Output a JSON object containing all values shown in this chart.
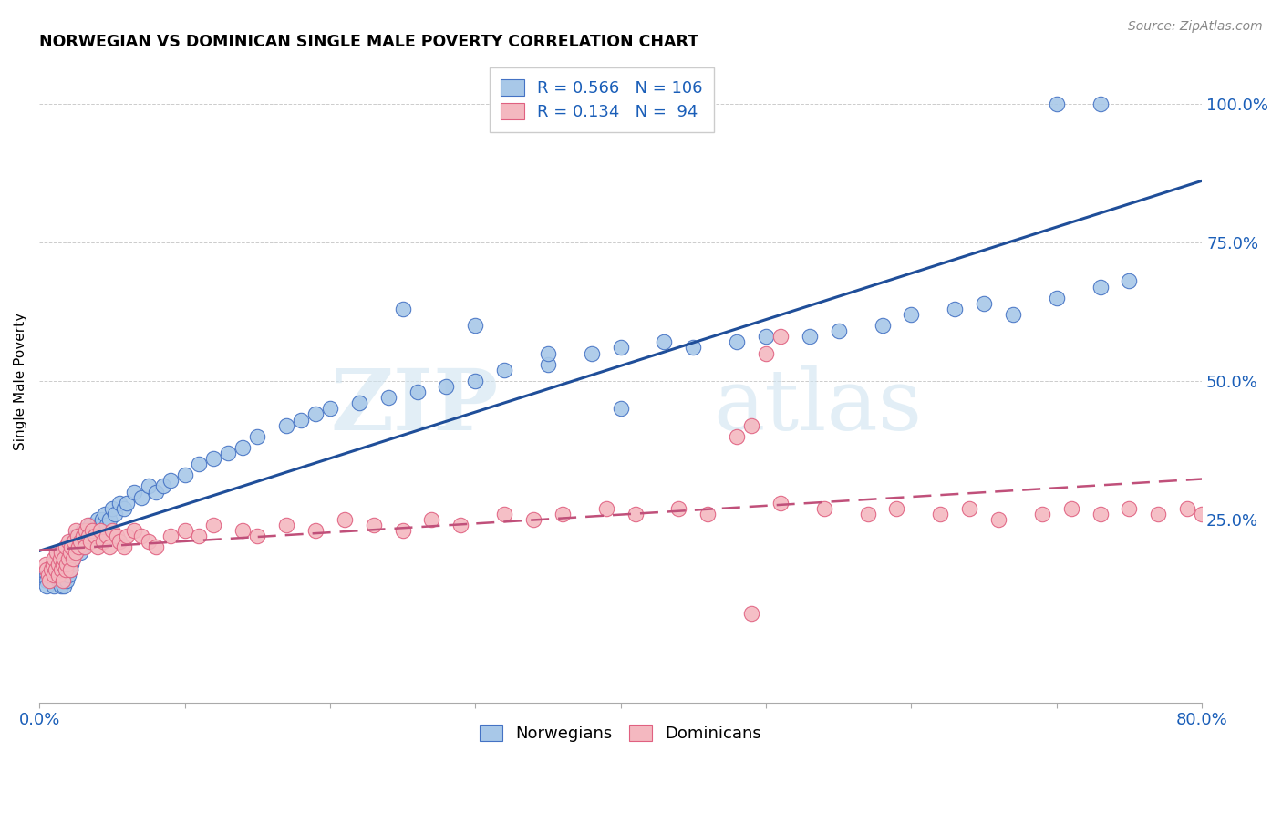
{
  "title": "NORWEGIAN VS DOMINICAN SINGLE MALE POVERTY CORRELATION CHART",
  "source": "Source: ZipAtlas.com",
  "ylabel": "Single Male Poverty",
  "ytick_labels": [
    "100.0%",
    "75.0%",
    "50.0%",
    "25.0%"
  ],
  "ytick_values": [
    1.0,
    0.75,
    0.5,
    0.25
  ],
  "legend_blue_r": "0.566",
  "legend_blue_n": "106",
  "legend_pink_r": "0.134",
  "legend_pink_n": "94",
  "blue_color": "#a8c8e8",
  "pink_color": "#f4b8c0",
  "blue_edge_color": "#4472c4",
  "pink_edge_color": "#e06080",
  "blue_line_color": "#1f4e99",
  "pink_line_color": "#c0507a",
  "pink_line_dash": [
    8,
    4
  ],
  "watermark": "ZIPatlas",
  "xlim": [
    0.0,
    0.8
  ],
  "ylim": [
    -0.08,
    1.08
  ],
  "norwegian_x": [
    0.005,
    0.005,
    0.005,
    0.007,
    0.008,
    0.01,
    0.01,
    0.01,
    0.01,
    0.012,
    0.012,
    0.013,
    0.013,
    0.015,
    0.015,
    0.015,
    0.016,
    0.016,
    0.017,
    0.017,
    0.018,
    0.018,
    0.019,
    0.019,
    0.02,
    0.02,
    0.02,
    0.021,
    0.021,
    0.022,
    0.022,
    0.023,
    0.023,
    0.024,
    0.025,
    0.025,
    0.026,
    0.027,
    0.028,
    0.028,
    0.03,
    0.03,
    0.031,
    0.032,
    0.033,
    0.035,
    0.036,
    0.037,
    0.038,
    0.04,
    0.041,
    0.042,
    0.043,
    0.045,
    0.046,
    0.048,
    0.05,
    0.052,
    0.055,
    0.058,
    0.06,
    0.065,
    0.07,
    0.075,
    0.08,
    0.085,
    0.09,
    0.1,
    0.11,
    0.12,
    0.13,
    0.14,
    0.15,
    0.17,
    0.18,
    0.19,
    0.2,
    0.22,
    0.24,
    0.26,
    0.28,
    0.3,
    0.32,
    0.35,
    0.38,
    0.4,
    0.43,
    0.45,
    0.48,
    0.5,
    0.53,
    0.55,
    0.58,
    0.6,
    0.63,
    0.65,
    0.67,
    0.7,
    0.73,
    0.75,
    0.7,
    0.73,
    0.25,
    0.3,
    0.35,
    0.4
  ],
  "norwegian_y": [
    0.15,
    0.14,
    0.13,
    0.16,
    0.15,
    0.17,
    0.16,
    0.14,
    0.13,
    0.18,
    0.15,
    0.17,
    0.14,
    0.16,
    0.15,
    0.13,
    0.17,
    0.14,
    0.16,
    0.13,
    0.18,
    0.15,
    0.17,
    0.14,
    0.2,
    0.18,
    0.15,
    0.19,
    0.16,
    0.2,
    0.17,
    0.21,
    0.18,
    0.19,
    0.22,
    0.19,
    0.2,
    0.21,
    0.22,
    0.19,
    0.23,
    0.2,
    0.22,
    0.21,
    0.23,
    0.24,
    0.22,
    0.23,
    0.22,
    0.25,
    0.24,
    0.23,
    0.25,
    0.26,
    0.24,
    0.25,
    0.27,
    0.26,
    0.28,
    0.27,
    0.28,
    0.3,
    0.29,
    0.31,
    0.3,
    0.31,
    0.32,
    0.33,
    0.35,
    0.36,
    0.37,
    0.38,
    0.4,
    0.42,
    0.43,
    0.44,
    0.45,
    0.46,
    0.47,
    0.48,
    0.49,
    0.5,
    0.52,
    0.53,
    0.55,
    0.56,
    0.57,
    0.56,
    0.57,
    0.58,
    0.58,
    0.59,
    0.6,
    0.62,
    0.63,
    0.64,
    0.62,
    0.65,
    0.67,
    0.68,
    1.0,
    1.0,
    0.63,
    0.6,
    0.55,
    0.45
  ],
  "dominican_x": [
    0.004,
    0.005,
    0.006,
    0.007,
    0.008,
    0.009,
    0.01,
    0.01,
    0.011,
    0.012,
    0.013,
    0.013,
    0.014,
    0.015,
    0.015,
    0.016,
    0.016,
    0.017,
    0.018,
    0.018,
    0.019,
    0.02,
    0.02,
    0.021,
    0.021,
    0.022,
    0.023,
    0.024,
    0.025,
    0.025,
    0.026,
    0.027,
    0.028,
    0.03,
    0.031,
    0.032,
    0.033,
    0.034,
    0.035,
    0.036,
    0.038,
    0.04,
    0.042,
    0.044,
    0.046,
    0.048,
    0.05,
    0.053,
    0.055,
    0.058,
    0.06,
    0.065,
    0.07,
    0.075,
    0.08,
    0.09,
    0.1,
    0.11,
    0.12,
    0.14,
    0.15,
    0.17,
    0.19,
    0.21,
    0.23,
    0.25,
    0.27,
    0.29,
    0.32,
    0.34,
    0.36,
    0.39,
    0.41,
    0.44,
    0.46,
    0.49,
    0.51,
    0.54,
    0.57,
    0.59,
    0.62,
    0.64,
    0.66,
    0.69,
    0.71,
    0.73,
    0.75,
    0.77,
    0.79,
    0.8,
    0.48,
    0.49,
    0.5,
    0.51
  ],
  "dominican_y": [
    0.17,
    0.16,
    0.15,
    0.14,
    0.16,
    0.17,
    0.18,
    0.15,
    0.16,
    0.19,
    0.17,
    0.15,
    0.18,
    0.16,
    0.19,
    0.17,
    0.14,
    0.18,
    0.16,
    0.2,
    0.17,
    0.21,
    0.18,
    0.19,
    0.16,
    0.2,
    0.18,
    0.21,
    0.23,
    0.19,
    0.22,
    0.2,
    0.21,
    0.22,
    0.2,
    0.23,
    0.24,
    0.22,
    0.21,
    0.23,
    0.22,
    0.2,
    0.23,
    0.21,
    0.22,
    0.2,
    0.23,
    0.22,
    0.21,
    0.2,
    0.22,
    0.23,
    0.22,
    0.21,
    0.2,
    0.22,
    0.23,
    0.22,
    0.24,
    0.23,
    0.22,
    0.24,
    0.23,
    0.25,
    0.24,
    0.23,
    0.25,
    0.24,
    0.26,
    0.25,
    0.26,
    0.27,
    0.26,
    0.27,
    0.26,
    0.08,
    0.28,
    0.27,
    0.26,
    0.27,
    0.26,
    0.27,
    0.25,
    0.26,
    0.27,
    0.26,
    0.27,
    0.26,
    0.27,
    0.26,
    0.4,
    0.42,
    0.55,
    0.58
  ]
}
